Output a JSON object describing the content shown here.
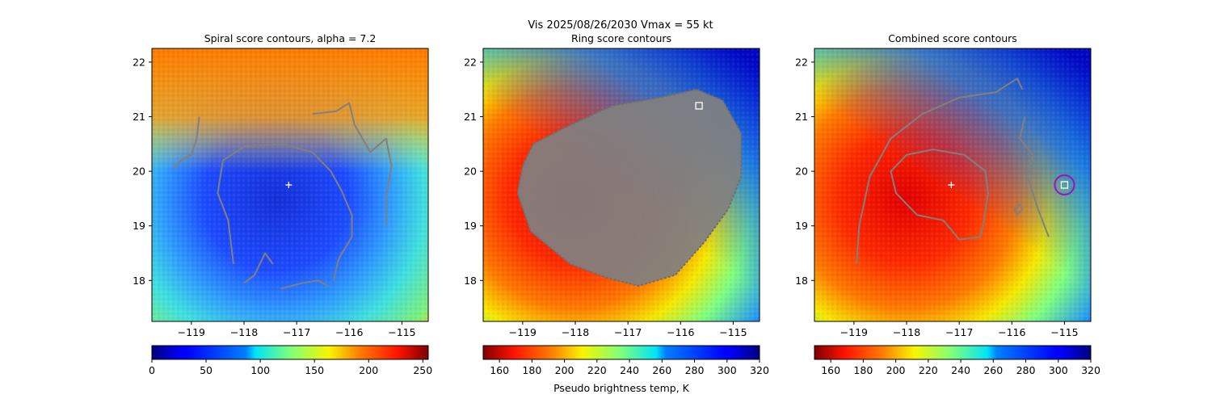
{
  "figure": {
    "suptitle_line1": "Vis  2025/08/26/2030    Vmax = 55 kt"
  },
  "chart_data": [
    {
      "type": "heatmap",
      "title": "Spiral score contours, alpha =  7.2",
      "x_ticks": [
        -119,
        -118,
        -117,
        -116,
        -115
      ],
      "y_ticks": [
        18,
        19,
        20,
        21,
        22
      ],
      "xlim": [
        -119.75,
        -114.5
      ],
      "ylim": [
        17.25,
        22.25
      ],
      "colorbar": {
        "cmap": "jet",
        "reversed": false,
        "ticks": [
          0,
          50,
          100,
          150,
          200,
          250
        ],
        "range": [
          0,
          255
        ],
        "label": ""
      },
      "center_marker": {
        "lon": -117.15,
        "lat": 19.75,
        "symbol": "+"
      },
      "contours": [
        [
          [
            -118.2,
            18.3
          ],
          [
            -118.3,
            19.1
          ],
          [
            -118.5,
            19.6
          ],
          [
            -118.4,
            20.2
          ],
          [
            -118.0,
            20.45
          ],
          [
            -117.3,
            20.5
          ],
          [
            -116.7,
            20.35
          ],
          [
            -116.35,
            20.0
          ],
          [
            -116.15,
            19.65
          ],
          [
            -115.95,
            19.2
          ],
          [
            -115.95,
            18.8
          ],
          [
            -116.2,
            18.4
          ],
          [
            -116.3,
            18.0
          ]
        ],
        [
          [
            -116.7,
            21.05
          ],
          [
            -116.25,
            21.1
          ],
          [
            -116.0,
            21.25
          ],
          [
            -115.9,
            20.85
          ],
          [
            -115.6,
            20.35
          ],
          [
            -115.3,
            20.6
          ],
          [
            -115.2,
            20.1
          ],
          [
            -115.3,
            19.5
          ],
          [
            -115.3,
            19.0
          ]
        ],
        [
          [
            -119.35,
            20.05
          ],
          [
            -119.2,
            20.2
          ],
          [
            -119.0,
            20.3
          ],
          [
            -118.9,
            20.6
          ],
          [
            -118.85,
            21.0
          ]
        ],
        [
          [
            -118.0,
            17.95
          ],
          [
            -117.8,
            18.1
          ],
          [
            -117.6,
            18.5
          ],
          [
            -117.45,
            18.3
          ]
        ],
        [
          [
            -117.3,
            17.85
          ],
          [
            -116.9,
            17.95
          ],
          [
            -116.6,
            18.0
          ],
          [
            -116.4,
            17.9
          ]
        ]
      ],
      "marker": null
    },
    {
      "type": "heatmap",
      "title": "Ring score contours",
      "x_ticks": [
        -119,
        -118,
        -117,
        -116,
        -115
      ],
      "y_ticks": [
        18,
        19,
        20,
        21,
        22
      ],
      "xlim": [
        -119.75,
        -114.5
      ],
      "ylim": [
        17.25,
        22.25
      ],
      "colorbar": {
        "cmap": "jet",
        "reversed": true,
        "ticks": [
          160,
          180,
          200,
          220,
          240,
          260,
          280,
          300,
          320
        ],
        "range": [
          150,
          320
        ],
        "label": "Pseudo brightness temp, K"
      },
      "center_marker": null,
      "contours": [],
      "ring_region": [
        [
          -118.8,
          20.5
        ],
        [
          -118.2,
          20.8
        ],
        [
          -117.3,
          21.2
        ],
        [
          -116.4,
          21.35
        ],
        [
          -115.7,
          21.5
        ],
        [
          -115.2,
          21.3
        ],
        [
          -114.85,
          20.7
        ],
        [
          -114.85,
          19.9
        ],
        [
          -115.1,
          19.3
        ],
        [
          -115.55,
          18.7
        ],
        [
          -116.1,
          18.1
        ],
        [
          -116.8,
          17.9
        ],
        [
          -117.4,
          18.05
        ],
        [
          -118.1,
          18.3
        ],
        [
          -118.85,
          18.9
        ],
        [
          -119.1,
          19.6
        ],
        [
          -119.0,
          20.1
        ]
      ],
      "marker": {
        "lon": -115.65,
        "lat": 21.2,
        "symbol": "square"
      }
    },
    {
      "type": "heatmap",
      "title": "Combined score contours",
      "x_ticks": [
        -119,
        -118,
        -117,
        -116,
        -115
      ],
      "y_ticks": [
        18,
        19,
        20,
        21,
        22
      ],
      "xlim": [
        -119.75,
        -114.5
      ],
      "ylim": [
        17.25,
        22.25
      ],
      "colorbar": {
        "cmap": "jet",
        "reversed": true,
        "ticks": [
          160,
          180,
          200,
          220,
          240,
          260,
          280,
          300,
          320
        ],
        "range": [
          150,
          320
        ],
        "label": ""
      },
      "center_marker": {
        "lon": -117.15,
        "lat": 19.75,
        "symbol": "+"
      },
      "contours": [
        [
          [
            -117.3,
            19.1
          ],
          [
            -117.8,
            19.2
          ],
          [
            -118.2,
            19.6
          ],
          [
            -118.3,
            20.0
          ],
          [
            -118.0,
            20.3
          ],
          [
            -117.5,
            20.4
          ],
          [
            -116.9,
            20.3
          ],
          [
            -116.5,
            20.0
          ],
          [
            -116.45,
            19.6
          ],
          [
            -116.55,
            19.0
          ],
          [
            -116.6,
            18.8
          ],
          [
            -117.0,
            18.75
          ],
          [
            -117.3,
            19.1
          ]
        ],
        [
          [
            -118.95,
            18.3
          ],
          [
            -118.9,
            19.0
          ],
          [
            -118.7,
            19.9
          ],
          [
            -118.3,
            20.6
          ],
          [
            -117.7,
            21.05
          ],
          [
            -117.0,
            21.35
          ],
          [
            -116.3,
            21.45
          ],
          [
            -115.9,
            21.7
          ],
          [
            -115.8,
            21.5
          ]
        ],
        [
          [
            -115.75,
            21.0
          ],
          [
            -115.85,
            20.6
          ],
          [
            -115.6,
            20.3
          ],
          [
            -115.7,
            19.9
          ],
          [
            -115.5,
            19.3
          ],
          [
            -115.3,
            18.8
          ]
        ],
        [
          [
            -115.9,
            19.2
          ],
          [
            -115.95,
            19.3
          ],
          [
            -115.85,
            19.4
          ],
          [
            -115.8,
            19.3
          ],
          [
            -115.9,
            19.2
          ]
        ]
      ],
      "marker": {
        "lon": -115.0,
        "lat": 19.75,
        "symbol": "square-circle"
      }
    }
  ],
  "colors": {
    "contour": "#808080",
    "marker": "#ffffff",
    "circle": "#8b1fbf"
  }
}
